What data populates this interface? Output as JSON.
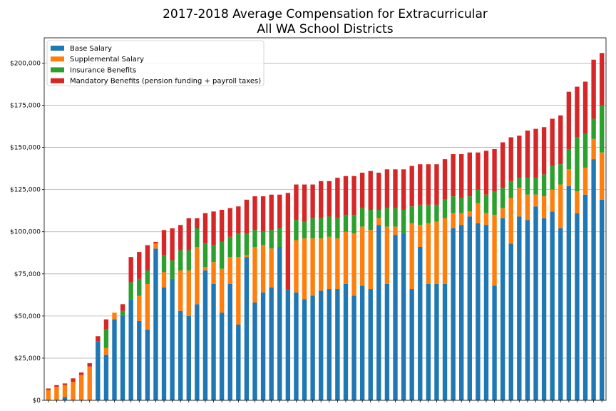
{
  "chart_data": {
    "type": "bar",
    "stacked": true,
    "title": [
      "2017-2018 Average Compensation for Extracurricular",
      "All WA School Districts"
    ],
    "xlabel": "",
    "ylabel": "",
    "ylim": [
      0,
      215000
    ],
    "yticks": [
      0,
      25000,
      50000,
      75000,
      100000,
      125000,
      150000,
      175000,
      200000
    ],
    "ytick_labels": [
      "$0",
      "$25,000",
      "$50,000",
      "$75,000",
      "$100,000",
      "$125,000",
      "$150,000",
      "$175,000",
      "$200,000"
    ],
    "grid": "horizontal",
    "legend_position": "top-left",
    "colors": [
      "#1f77b4",
      "#ff7f0e",
      "#2ca02c",
      "#d62728"
    ],
    "series": [
      {
        "name": "Base Salary",
        "values": [
          0,
          0,
          2000,
          0,
          0,
          0,
          35000,
          27000,
          48000,
          50000,
          60000,
          47000,
          42000,
          90000,
          67000,
          72000,
          53000,
          50000,
          57000,
          77000,
          69000,
          52000,
          69000,
          45000,
          85000,
          58000,
          64000,
          67000,
          91000,
          66000,
          64000,
          60000,
          62000,
          65000,
          66000,
          66000,
          69000,
          62000,
          68000,
          66000,
          104000,
          69000,
          98000,
          99000,
          66000,
          91000,
          69000,
          69000,
          69000,
          102000,
          104000,
          109000,
          105000,
          104000,
          68000,
          108000,
          93000,
          109000,
          107000,
          115000,
          108000,
          112000,
          102000,
          127000,
          111000,
          122000,
          143000,
          119000
        ]
      },
      {
        "name": "Supplemental Salary",
        "values": [
          6000,
          8000,
          7000,
          11000,
          15000,
          20000,
          0,
          4000,
          4000,
          0,
          0,
          15000,
          27000,
          3000,
          9000,
          0,
          24000,
          27000,
          34000,
          2000,
          13000,
          26000,
          16000,
          40000,
          1000,
          33000,
          28000,
          23000,
          0,
          0,
          31000,
          36000,
          34000,
          31000,
          31000,
          30000,
          31000,
          37000,
          35000,
          35000,
          4000,
          34000,
          5000,
          0,
          39000,
          13000,
          36000,
          37000,
          39000,
          9000,
          7000,
          3000,
          12000,
          7000,
          42000,
          6000,
          27000,
          17000,
          15000,
          7000,
          13000,
          13000,
          26000,
          10000,
          13000,
          16000,
          12000,
          28000
        ]
      },
      {
        "name": "Insurance Benefits",
        "values": [
          0,
          0,
          0,
          0,
          0,
          0,
          0,
          11000,
          0,
          3000,
          10000,
          10000,
          8000,
          0,
          10000,
          11000,
          12000,
          12000,
          11000,
          14000,
          10000,
          16000,
          12000,
          14000,
          13000,
          10000,
          8000,
          11000,
          11000,
          0,
          12000,
          10000,
          12000,
          12000,
          12000,
          12000,
          10000,
          11000,
          11000,
          12000,
          5000,
          11000,
          11000,
          14000,
          10000,
          12000,
          11000,
          10000,
          11000,
          10000,
          9000,
          9000,
          8000,
          11000,
          14000,
          12000,
          10000,
          6000,
          10000,
          10000,
          13000,
          14000,
          12000,
          12000,
          32000,
          20000,
          12000,
          28000
        ]
      },
      {
        "name": "Mandatory Benefits (pension funding + payroll taxes)",
        "values": [
          1000,
          1000,
          1000,
          2000,
          1500,
          2000,
          3000,
          6000,
          0,
          4000,
          15000,
          16000,
          15000,
          1000,
          15000,
          19000,
          15000,
          19000,
          6000,
          18000,
          20000,
          19000,
          17000,
          16000,
          20000,
          20000,
          21000,
          21000,
          20000,
          57000,
          21000,
          22000,
          20000,
          22000,
          21000,
          24000,
          23000,
          23000,
          21000,
          23000,
          22000,
          23000,
          23000,
          24000,
          24000,
          24000,
          24000,
          24000,
          24000,
          25000,
          26000,
          26000,
          22000,
          26000,
          25000,
          27000,
          26000,
          25000,
          28000,
          29000,
          28000,
          28000,
          29000,
          34000,
          30000,
          31000,
          35000,
          31000
        ]
      }
    ]
  }
}
